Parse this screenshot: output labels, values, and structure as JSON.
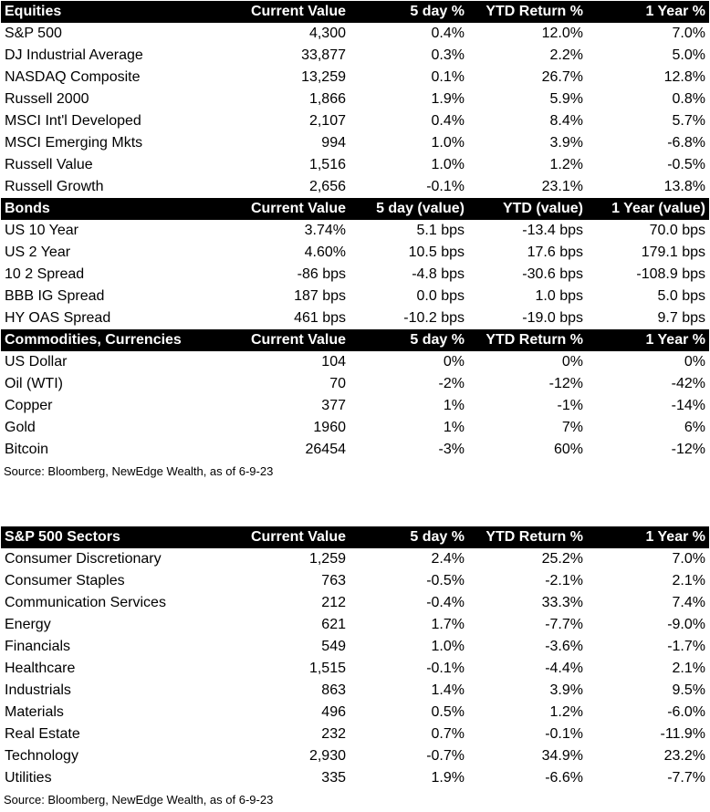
{
  "equities": {
    "header": [
      "Equities",
      "Current Value",
      "5 day %",
      "YTD Return %",
      "1 Year %"
    ],
    "rows": [
      [
        "S&P 500",
        "4,300",
        "0.4%",
        "12.0%",
        "7.0%"
      ],
      [
        "DJ Industrial Average",
        "33,877",
        "0.3%",
        "2.2%",
        "5.0%"
      ],
      [
        "NASDAQ Composite",
        "13,259",
        "0.1%",
        "26.7%",
        "12.8%"
      ],
      [
        "Russell 2000",
        "1,866",
        "1.9%",
        "5.9%",
        "0.8%"
      ],
      [
        "MSCI Int'l Developed",
        "2,107",
        "0.4%",
        "8.4%",
        "5.7%"
      ],
      [
        "MSCI Emerging Mkts",
        "994",
        "1.0%",
        "3.9%",
        "-6.8%"
      ],
      [
        "Russell Value",
        "1,516",
        "1.0%",
        "1.2%",
        "-0.5%"
      ],
      [
        "Russell Growth",
        "2,656",
        "-0.1%",
        "23.1%",
        "13.8%"
      ]
    ]
  },
  "bonds": {
    "header": [
      "Bonds",
      "Current Value",
      "5 day (value)",
      "YTD (value)",
      "1 Year (value)"
    ],
    "rows": [
      [
        "US 10 Year",
        "3.74%",
        "5.1 bps",
        "-13.4 bps",
        "70.0 bps"
      ],
      [
        "US 2 Year",
        "4.60%",
        "10.5 bps",
        "17.6 bps",
        "179.1 bps"
      ],
      [
        "10 2 Spread",
        "-86 bps",
        "-4.8 bps",
        "-30.6 bps",
        "-108.9 bps"
      ],
      [
        "BBB IG Spread",
        "187 bps",
        "0.0 bps",
        "1.0 bps",
        "5.0 bps"
      ],
      [
        "HY OAS Spread",
        "461 bps",
        "-10.2 bps",
        "-19.0 bps",
        "9.7 bps"
      ]
    ]
  },
  "commodities": {
    "header": [
      "Commodities, Currencies",
      "Current Value",
      "5 day %",
      "YTD Return %",
      "1 Year %"
    ],
    "rows": [
      [
        "US Dollar",
        "104",
        "0%",
        "0%",
        "0%"
      ],
      [
        "Oil (WTI)",
        "70",
        "-2%",
        "-12%",
        "-42%"
      ],
      [
        "Copper",
        "377",
        "1%",
        "-1%",
        "-14%"
      ],
      [
        "Gold",
        "1960",
        "1%",
        "7%",
        "6%"
      ],
      [
        "Bitcoin",
        "26454",
        "-3%",
        "60%",
        "-12%"
      ]
    ]
  },
  "source_top": "Source: Bloomberg, NewEdge Wealth, as of 6-9-23",
  "sectors": {
    "header": [
      "S&P 500 Sectors",
      "Current Value",
      "5 day %",
      "YTD Return %",
      "1 Year %"
    ],
    "rows": [
      [
        "Consumer Discretionary",
        "1,259",
        "2.4%",
        "25.2%",
        "7.0%"
      ],
      [
        "Consumer Staples",
        "763",
        "-0.5%",
        "-2.1%",
        "2.1%"
      ],
      [
        "Communication Services",
        "212",
        "-0.4%",
        "33.3%",
        "7.4%"
      ],
      [
        "Energy",
        "621",
        "1.7%",
        "-7.7%",
        "-9.0%"
      ],
      [
        "Financials",
        "549",
        "1.0%",
        "-3.6%",
        "-1.7%"
      ],
      [
        "Healthcare",
        "1,515",
        "-0.1%",
        "-4.4%",
        "2.1%"
      ],
      [
        "Industrials",
        "863",
        "1.4%",
        "3.9%",
        "9.5%"
      ],
      [
        "Materials",
        "496",
        "0.5%",
        "1.2%",
        "-6.0%"
      ],
      [
        "Real Estate",
        "232",
        "0.7%",
        "-0.1%",
        "-11.9%"
      ],
      [
        "Technology",
        "2,930",
        "-0.7%",
        "34.9%",
        "23.2%"
      ],
      [
        "Utilities",
        "335",
        "1.9%",
        "-6.6%",
        "-7.7%"
      ]
    ]
  },
  "source_bottom": "Source: Bloomberg, NewEdge Wealth, as of 6-9-23"
}
